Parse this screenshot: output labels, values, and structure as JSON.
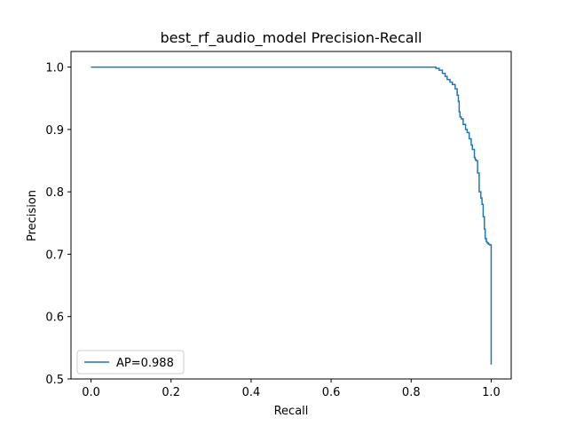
{
  "chart_data": {
    "type": "line",
    "title": "best_rf_audio_model Precision-Recall",
    "xlabel": "Recall",
    "ylabel": "Precision",
    "xlim": [
      -0.05,
      1.05
    ],
    "ylim": [
      0.5,
      1.025
    ],
    "xticks": [
      "0.0",
      "0.2",
      "0.4",
      "0.6",
      "0.8",
      "1.0"
    ],
    "yticks": [
      "0.5",
      "0.6",
      "0.7",
      "0.8",
      "0.9",
      "1.0"
    ],
    "grid": false,
    "legend_position": "lower-left",
    "line_style": "step",
    "color": "#1f77b4",
    "series": [
      {
        "name": "AP=0.988",
        "x": [
          0.0,
          0.855,
          0.862,
          0.87,
          0.878,
          0.885,
          0.89,
          0.897,
          0.903,
          0.91,
          0.915,
          0.918,
          0.92,
          0.922,
          0.925,
          0.93,
          0.936,
          0.94,
          0.945,
          0.95,
          0.953,
          0.958,
          0.96,
          0.962,
          0.966,
          0.97,
          0.974,
          0.977,
          0.98,
          0.983,
          0.985,
          0.988,
          0.99,
          0.993,
          0.996,
          1.0,
          1.0
        ],
        "y": [
          1.0,
          1.0,
          0.998,
          0.995,
          0.99,
          0.985,
          0.98,
          0.976,
          0.972,
          0.965,
          0.955,
          0.945,
          0.928,
          0.92,
          0.917,
          0.908,
          0.9,
          0.895,
          0.885,
          0.875,
          0.868,
          0.855,
          0.852,
          0.85,
          0.83,
          0.8,
          0.79,
          0.78,
          0.76,
          0.74,
          0.725,
          0.72,
          0.718,
          0.716,
          0.715,
          0.715,
          0.523
        ]
      }
    ]
  }
}
